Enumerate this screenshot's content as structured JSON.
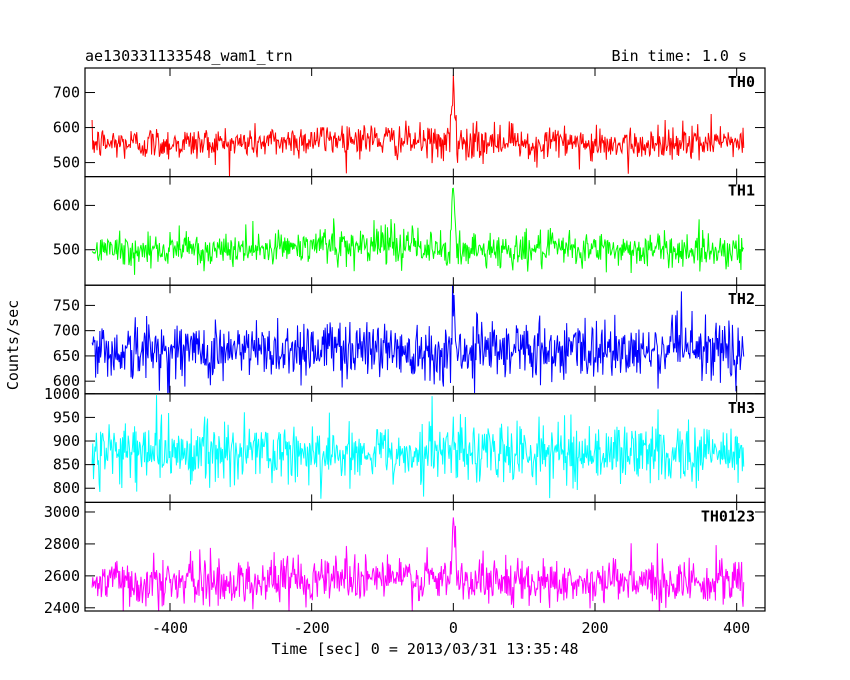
{
  "header": {
    "left_title": "ae130331133548_wam1_trn",
    "right_title": "Bin time: 1.0 s"
  },
  "chart_data": {
    "type": "line",
    "stacked_panels": true,
    "xlabel": "Time [sec] 0 = 2013/03/31 13:35:48",
    "ylabel": "Counts/sec",
    "xlim": [
      -520,
      440
    ],
    "x_range": [
      -510,
      410
    ],
    "xticks": [
      -400,
      -200,
      0,
      200,
      400
    ],
    "bin_time_s": 1.0,
    "panels": [
      {
        "name": "TH0",
        "color": "#ff0000",
        "ylim": [
          460,
          770
        ],
        "yticks": [
          500,
          600,
          700
        ],
        "baseline": 555,
        "noise": 24,
        "peak": 765,
        "peak_width": 4,
        "plateau": 15
      },
      {
        "name": "TH1",
        "color": "#00ff00",
        "ylim": [
          420,
          665
        ],
        "yticks": [
          500,
          600
        ],
        "baseline": 500,
        "noise": 20,
        "peak": 665,
        "peak_width": 4,
        "plateau": 12
      },
      {
        "name": "TH2",
        "color": "#0000ff",
        "ylim": [
          575,
          790
        ],
        "yticks": [
          600,
          650,
          700,
          750
        ],
        "baseline": 660,
        "noise": 30,
        "peak": 790,
        "peak_width": 3,
        "plateau": 8
      },
      {
        "name": "TH3",
        "color": "#00ffff",
        "ylim": [
          770,
          1000
        ],
        "yticks": [
          800,
          850,
          900,
          950,
          1000
        ],
        "baseline": 875,
        "noise": 32,
        "peak": 960,
        "peak_width": 2,
        "plateau": 0
      },
      {
        "name": "TH0123",
        "color": "#ff00ff",
        "ylim": [
          2380,
          3060
        ],
        "yticks": [
          2400,
          2600,
          2800,
          3000
        ],
        "baseline": 2560,
        "noise": 75,
        "peak": 3050,
        "peak_width": 4,
        "plateau": 45
      }
    ]
  }
}
